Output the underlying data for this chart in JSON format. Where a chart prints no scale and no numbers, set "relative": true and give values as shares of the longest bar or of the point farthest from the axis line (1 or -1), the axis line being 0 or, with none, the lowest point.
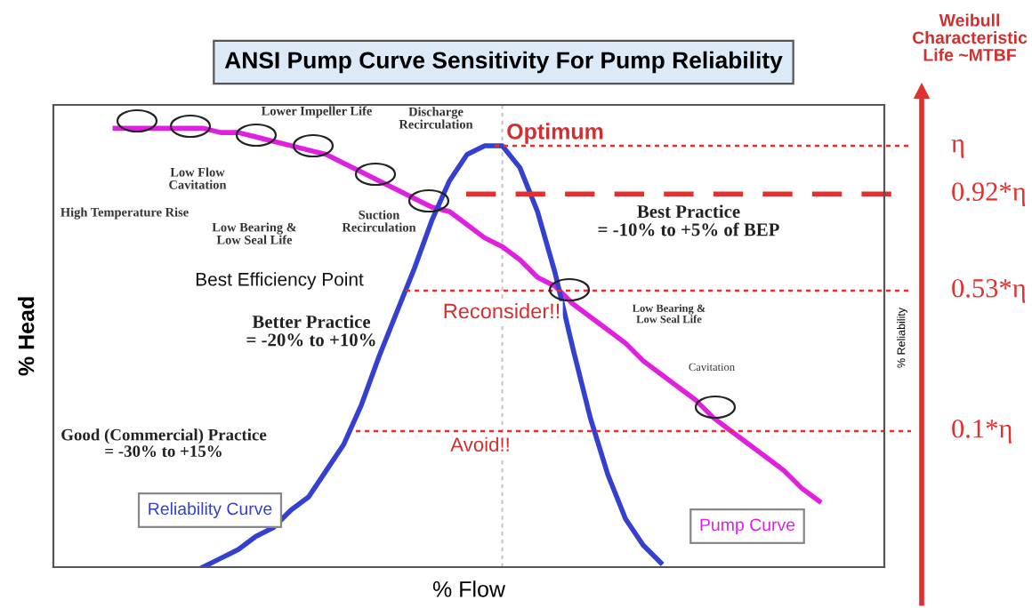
{
  "chart_data": {
    "type": "line",
    "relative": true,
    "title": "ANSI Pump Curve Sensitivity For Pump Reliability",
    "xlabel": "% Flow",
    "ylabel": "% Head",
    "y2label": "% Reliability",
    "categories": [
      null,
      null,
      null,
      null,
      null,
      null,
      null,
      null,
      null,
      null,
      null,
      null,
      null,
      null,
      null,
      null,
      null,
      null,
      null,
      null,
      null,
      null,
      null,
      null,
      null,
      null,
      null,
      null,
      null,
      null,
      null,
      null,
      null,
      null,
      null,
      null,
      null,
      null,
      null,
      null,
      null,
      null,
      null,
      null,
      null,
      null,
      null
    ],
    "series": [
      {
        "name": "Pump Curve",
        "color": "#e020e0",
        "values": [
          null,
          null,
          null,
          1.0,
          1.0,
          1.0,
          1.0,
          1.0,
          1.0,
          0.99,
          0.99,
          0.98,
          0.97,
          0.96,
          0.95,
          0.94,
          0.92,
          0.9,
          0.88,
          0.86,
          0.84,
          0.82,
          0.81,
          0.78,
          0.75,
          0.73,
          0.7,
          0.66,
          0.64,
          0.6,
          0.57,
          0.54,
          0.51,
          0.47,
          0.44,
          0.41,
          0.38,
          0.34,
          0.31,
          0.28,
          0.25,
          0.22,
          0.18,
          0.15,
          null,
          null,
          null
        ]
      },
      {
        "name": "Reliability Curve",
        "color": "#3340d0",
        "values": [
          null,
          null,
          null,
          null,
          null,
          null,
          null,
          null,
          0.0,
          0.02,
          0.04,
          0.07,
          0.09,
          0.13,
          0.16,
          0.22,
          0.28,
          0.37,
          0.48,
          0.58,
          0.68,
          0.79,
          0.88,
          0.94,
          0.96,
          0.96,
          0.91,
          0.81,
          0.67,
          0.5,
          0.34,
          0.21,
          0.11,
          0.05,
          0.01,
          null,
          null,
          null,
          null,
          null,
          null,
          null,
          null,
          null,
          null,
          null,
          null
        ]
      }
    ],
    "ref_lines": [
      {
        "axis": "y",
        "value": 0.96,
        "label": "η",
        "color": "#e03030",
        "line_style": "dotted"
      },
      {
        "axis": "y",
        "value": 0.85,
        "label": "0.92*η",
        "color": "#e03030",
        "line_style": "dashed"
      },
      {
        "axis": "y",
        "value": 0.63,
        "label": "0.53*η",
        "color": "#e03030",
        "line_style": "dotted"
      },
      {
        "axis": "y",
        "value": 0.31,
        "label": "0.1*η",
        "color": "#e03030",
        "line_style": "dotted"
      }
    ],
    "annotations": [
      "High Temperature Rise",
      "Low Flow\nCavitation",
      "Low Bearing &\nLow Seal Life",
      "Lower Impeller Life",
      "Suction\nRecirculation",
      "Discharge\nRecirculation",
      "Optimum",
      "Best Practice\n= -10% to +5% of BEP",
      "Best Efficiency Point",
      "Reconsider!!",
      "Low Bearing &\nLow Seal Life",
      "Better Practice\n= -20% to +10%",
      "Good (Commercial) Practice\n= -30% to +15%",
      "Avoid!!",
      "Cavitation",
      "Weibull\nCharacteristic\nLife ~MTBF"
    ],
    "grid": false,
    "legend": false,
    "marker": "none",
    "line_style": "solid"
  }
}
